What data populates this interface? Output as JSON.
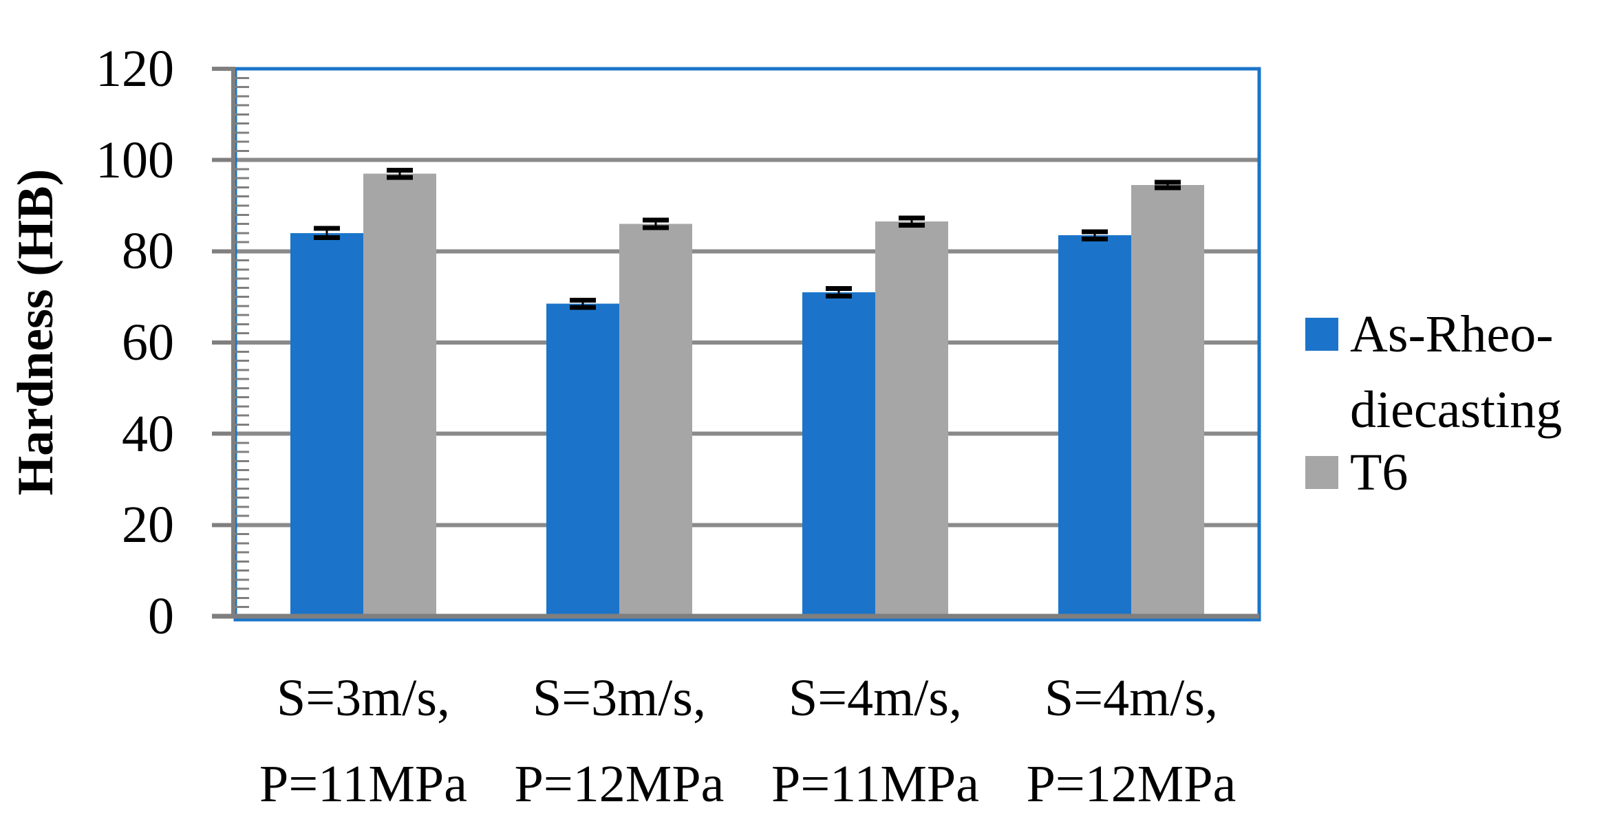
{
  "chart_data": {
    "type": "bar",
    "title": "",
    "ylabel": "Hardness  (HB)",
    "xlabel": "",
    "ylim": [
      0,
      120
    ],
    "yticks": [
      0,
      20,
      40,
      60,
      80,
      100,
      120
    ],
    "minor_tick_step": 2,
    "grid": "horizontal major gridlines on",
    "legend_position": "right",
    "categories": [
      [
        "S=3m/s,",
        "P=11MPa"
      ],
      [
        "S=3m/s,",
        "P=12MPa"
      ],
      [
        "S=4m/s,",
        "P=11MPa"
      ],
      [
        "S=4m/s,",
        "P=12MPa"
      ]
    ],
    "series": [
      {
        "name": "As-Rheo-diecasting",
        "legend_lines": [
          "As-Rheo-",
          "diecasting"
        ],
        "color": "#1B74C9",
        "values": [
          84,
          68.5,
          71,
          83.5
        ],
        "errors": [
          1,
          0.8,
          0.8,
          0.8
        ]
      },
      {
        "name": "T6",
        "legend_lines": [
          "T6"
        ],
        "color": "#A6A6A6",
        "values": [
          97,
          86,
          86.5,
          94.5
        ],
        "errors": [
          0.8,
          0.8,
          0.8,
          0.6
        ]
      }
    ],
    "colors": {
      "plot_border": "#1B74C9",
      "gridline": "#8A8A8A",
      "axis": "#7F7F7F",
      "error_bar": "#000000",
      "text": "#000000",
      "background": "#FFFFFF"
    }
  }
}
